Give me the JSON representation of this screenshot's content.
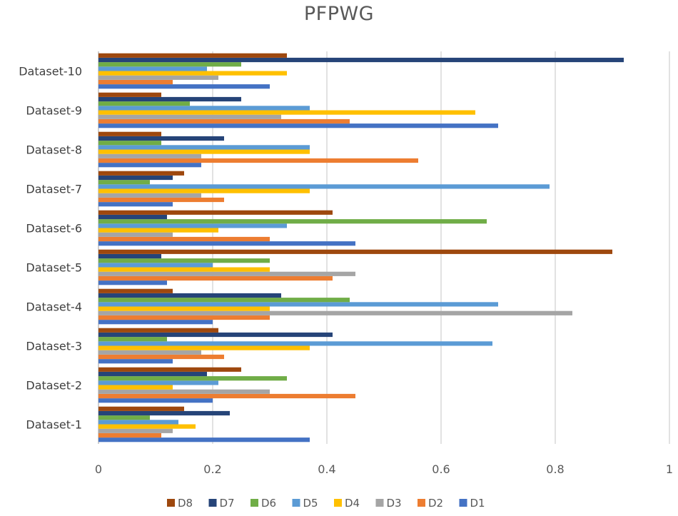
{
  "chart_data": {
    "type": "bar",
    "orientation": "horizontal",
    "title": "PFPWG",
    "xlabel": "",
    "ylabel": "",
    "xlim": [
      0,
      1
    ],
    "xticks": [
      "0",
      "0.2",
      "0.4",
      "0.6",
      "0.8",
      "1"
    ],
    "grid": true,
    "legend_position": "bottom",
    "categories": [
      "Dataset-1",
      "Dataset-2",
      "Dataset-3",
      "Dataset-4",
      "Dataset-5",
      "Dataset-6",
      "Dataset-7",
      "Dataset-8",
      "Dataset-9",
      "Dataset-10"
    ],
    "series": [
      {
        "name": "D1",
        "color": "#4472C4",
        "values": [
          0.37,
          0.2,
          0.13,
          0.2,
          0.12,
          0.45,
          0.13,
          0.18,
          0.7,
          0.3
        ]
      },
      {
        "name": "D2",
        "color": "#ED7D31",
        "values": [
          0.11,
          0.45,
          0.22,
          0.3,
          0.41,
          0.3,
          0.22,
          0.56,
          0.44,
          0.13
        ]
      },
      {
        "name": "D3",
        "color": "#A5A5A5",
        "values": [
          0.13,
          0.3,
          0.18,
          0.83,
          0.45,
          0.13,
          0.18,
          0.18,
          0.32,
          0.21
        ]
      },
      {
        "name": "D4",
        "color": "#FFC000",
        "values": [
          0.17,
          0.13,
          0.37,
          0.3,
          0.3,
          0.21,
          0.37,
          0.37,
          0.66,
          0.33
        ]
      },
      {
        "name": "D5",
        "color": "#5B9BD5",
        "values": [
          0.14,
          0.21,
          0.69,
          0.7,
          0.2,
          0.33,
          0.79,
          0.37,
          0.37,
          0.19
        ]
      },
      {
        "name": "D6",
        "color": "#70AD47",
        "values": [
          0.09,
          0.33,
          0.12,
          0.44,
          0.3,
          0.68,
          0.09,
          0.11,
          0.16,
          0.25
        ]
      },
      {
        "name": "D7",
        "color": "#264478",
        "values": [
          0.23,
          0.19,
          0.41,
          0.32,
          0.11,
          0.12,
          0.13,
          0.22,
          0.25,
          0.92
        ]
      },
      {
        "name": "D8",
        "color": "#9E480E",
        "values": [
          0.15,
          0.25,
          0.21,
          0.13,
          0.9,
          0.41,
          0.15,
          0.11,
          0.11,
          0.33
        ]
      }
    ],
    "legend_order": [
      "D8",
      "D7",
      "D6",
      "D5",
      "D4",
      "D3",
      "D2",
      "D1"
    ]
  }
}
